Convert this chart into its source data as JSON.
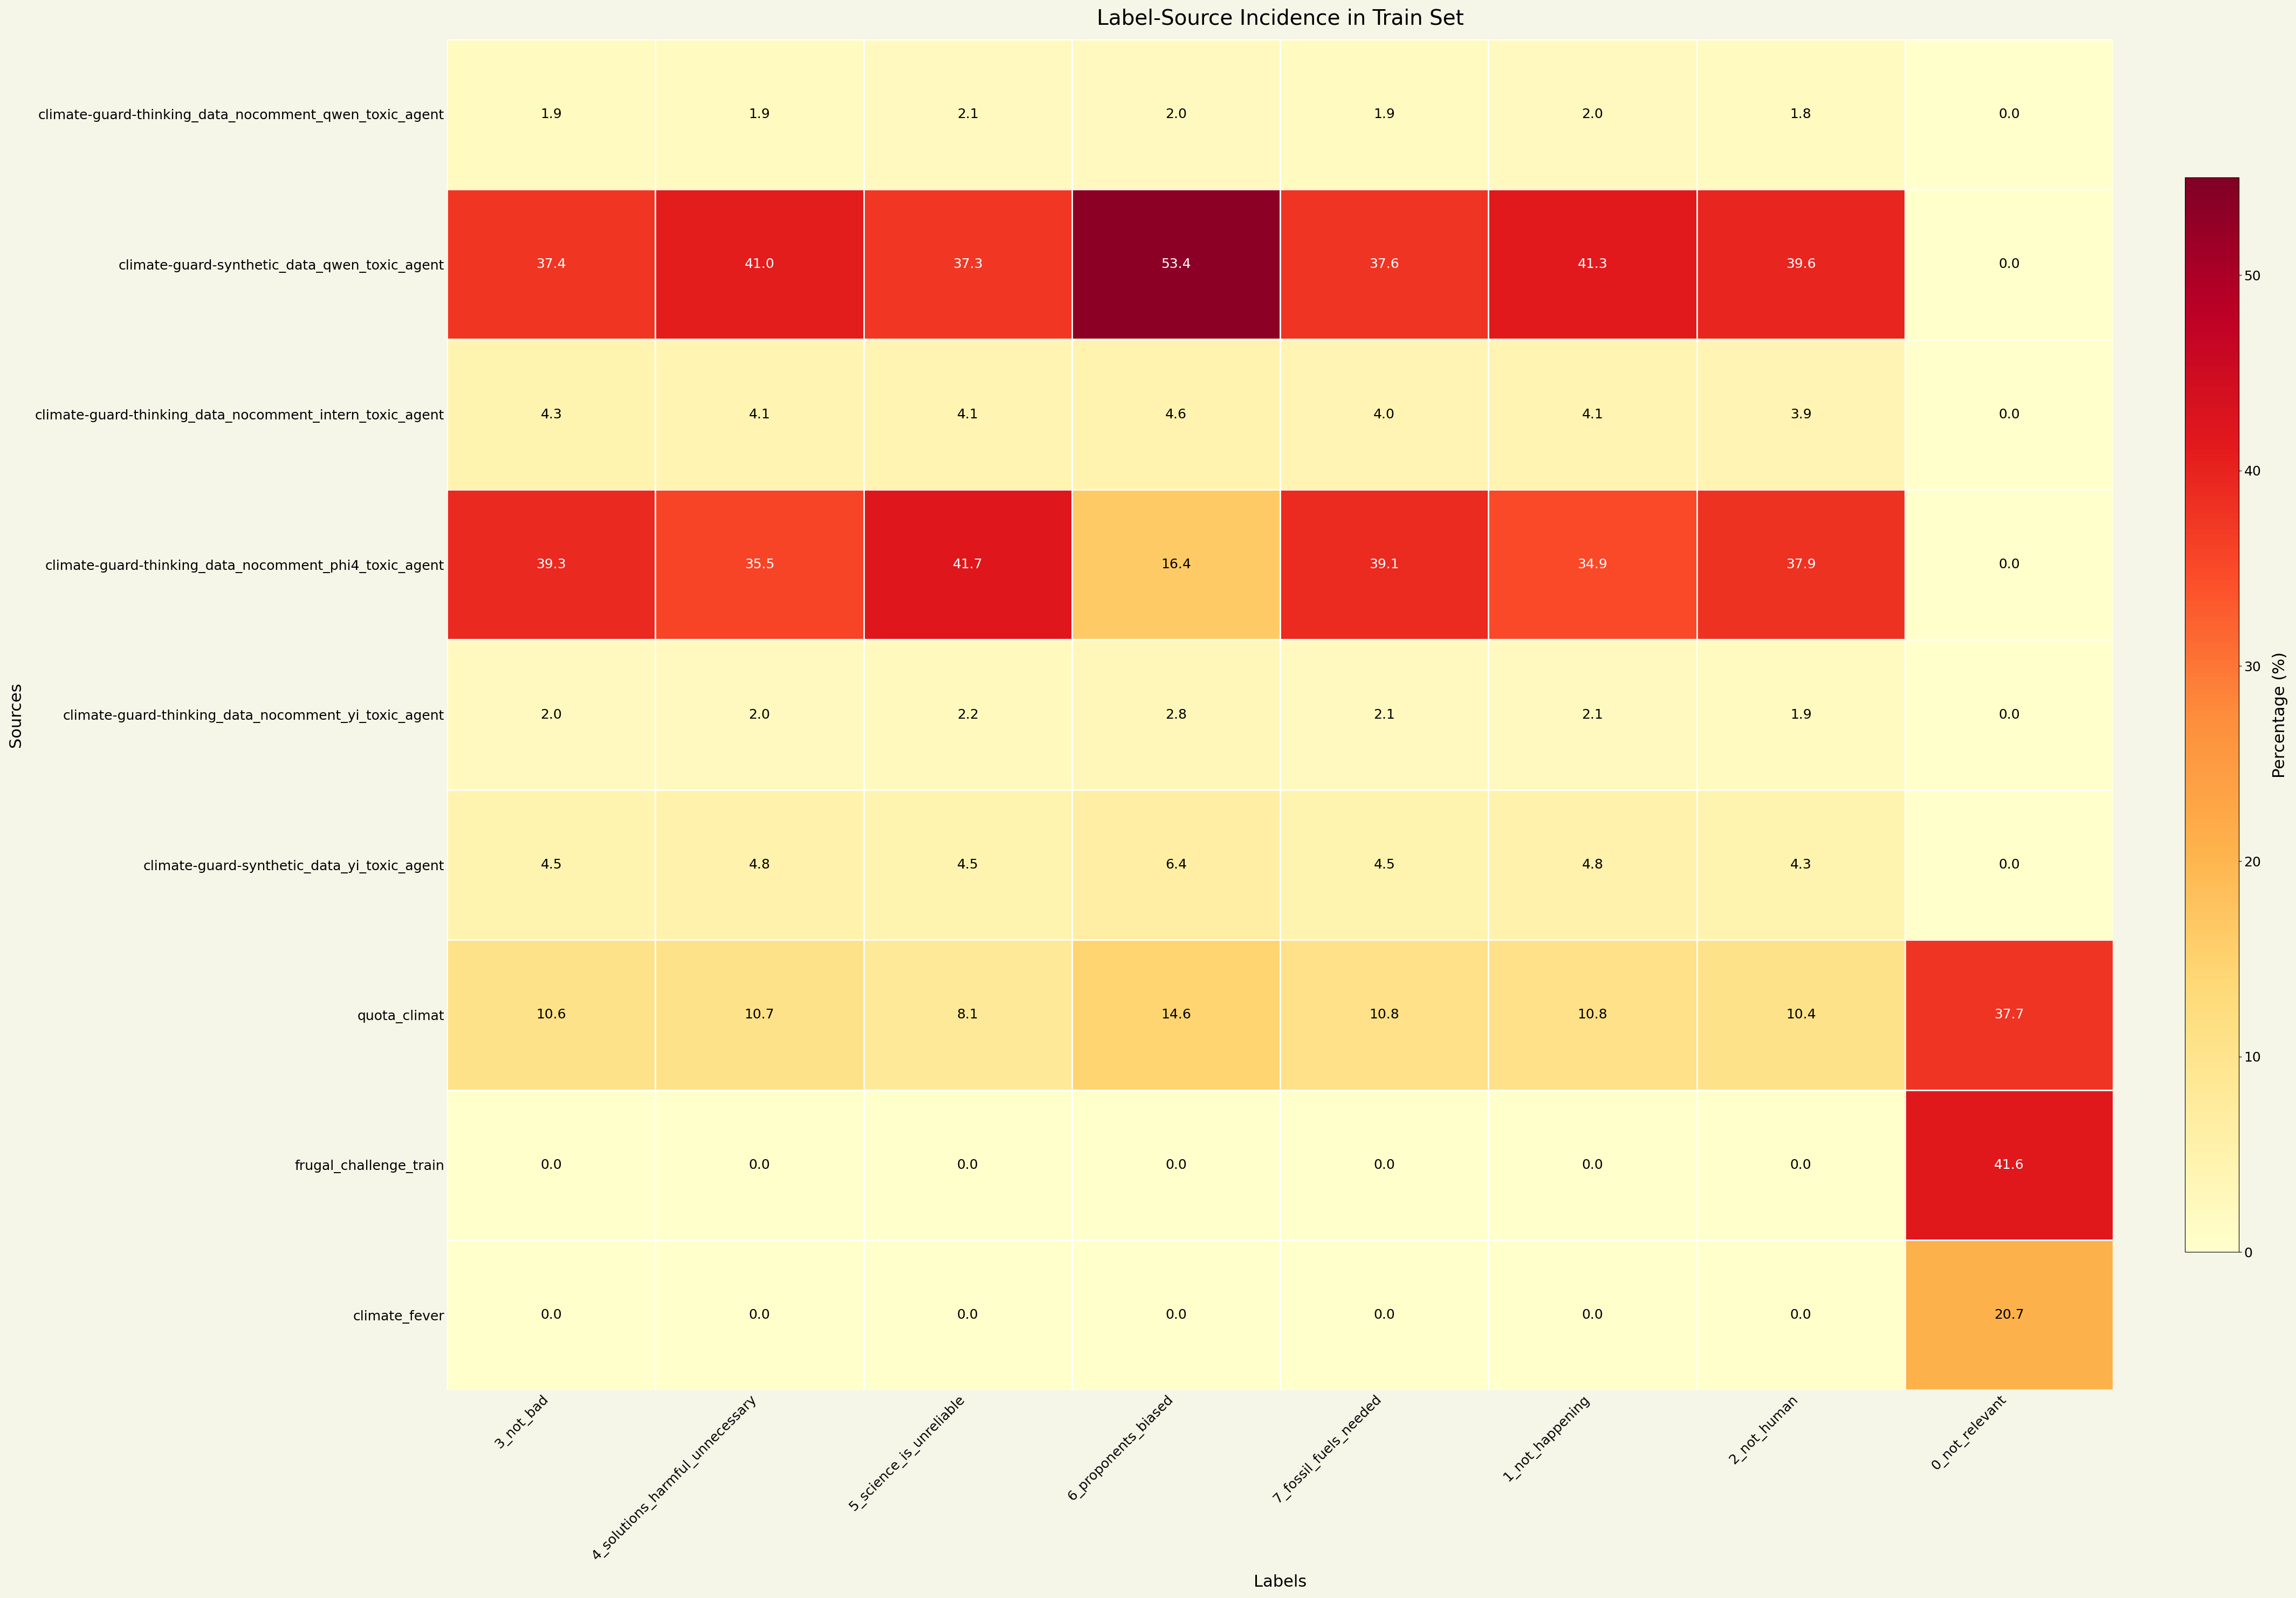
{
  "title": "Label-Source Incidence in Train Set",
  "xlabel": "Labels",
  "ylabel": "Sources",
  "colorbar_label": "Percentage (%)",
  "sources": [
    "climate-guard-thinking_data_nocomment_qwen_toxic_agent",
    "climate-guard-synthetic_data_qwen_toxic_agent",
    "climate-guard-thinking_data_nocomment_intern_toxic_agent",
    "climate-guard-thinking_data_nocomment_phi4_toxic_agent",
    "climate-guard-thinking_data_nocomment_yi_toxic_agent",
    "climate-guard-synthetic_data_yi_toxic_agent",
    "quota_climat",
    "frugal_challenge_train",
    "climate_fever"
  ],
  "labels": [
    "3_not_bad",
    "4_solutions_harmful_unnecessary",
    "5_science_is_unreliable",
    "6_proponents_biased",
    "7_fossil_fuels_needed",
    "1_not_happening",
    "2_not_human",
    "0_not_relevant"
  ],
  "data": [
    [
      1.9,
      1.9,
      2.1,
      2.0,
      1.9,
      2.0,
      1.8,
      0.0
    ],
    [
      37.4,
      41.0,
      37.3,
      53.4,
      37.6,
      41.3,
      39.6,
      0.0
    ],
    [
      4.3,
      4.1,
      4.1,
      4.6,
      4.0,
      4.1,
      3.9,
      0.0
    ],
    [
      39.3,
      35.5,
      41.7,
      16.4,
      39.1,
      34.9,
      37.9,
      0.0
    ],
    [
      2.0,
      2.0,
      2.2,
      2.8,
      2.1,
      2.1,
      1.9,
      0.0
    ],
    [
      4.5,
      4.8,
      4.5,
      6.4,
      4.5,
      4.8,
      4.3,
      0.0
    ],
    [
      10.6,
      10.7,
      8.1,
      14.6,
      10.8,
      10.8,
      10.4,
      37.7
    ],
    [
      0.0,
      0.0,
      0.0,
      0.0,
      0.0,
      0.0,
      0.0,
      41.6
    ],
    [
      0.0,
      0.0,
      0.0,
      0.0,
      0.0,
      0.0,
      0.0,
      20.7
    ]
  ],
  "vmin": 0,
  "vmax": 55,
  "colormap": "YlOrRd",
  "background_color": "#f5f5e8",
  "figure_background": "#f5f5e8",
  "annot_fontsize": 18,
  "title_fontsize": 28,
  "label_fontsize": 22,
  "tick_fontsize": 18,
  "colorbar_tick_fontsize": 18,
  "colorbar_label_fontsize": 22
}
